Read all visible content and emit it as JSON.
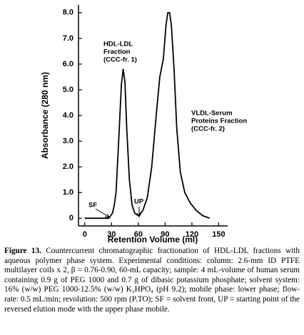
{
  "chart_data": {
    "type": "line",
    "xlabel": "Retention Volume (ml)",
    "ylabel": "Absorbance (280 nm)",
    "x": [
      0,
      20,
      27,
      29,
      31,
      33,
      35,
      38,
      41,
      43,
      45,
      47,
      50,
      53,
      56,
      60,
      65,
      70,
      75,
      80,
      84,
      88,
      91,
      93,
      95,
      97,
      100,
      103,
      107,
      112,
      118,
      125,
      132,
      140
    ],
    "values": [
      0,
      0,
      0,
      0.1,
      0.2,
      0.5,
      1.0,
      3.0,
      5.2,
      5.8,
      5.3,
      3.5,
      1.5,
      0.5,
      0.2,
      0.1,
      0.3,
      0.8,
      2.0,
      4.0,
      5.5,
      6.2,
      7.5,
      8.0,
      8.0,
      7.5,
      5.8,
      3.5,
      1.8,
      1.0,
      0.6,
      0.3,
      0.1,
      0
    ],
    "color": "#000000",
    "xlim": [
      -7,
      160
    ],
    "xticks": [
      0,
      30,
      60,
      90,
      120,
      150
    ],
    "ylim": [
      -0.3,
      8.3
    ],
    "yticks": [
      0,
      {
        "value": 1,
        "label": "1.0"
      },
      {
        "value": 2,
        "label": "2.0"
      },
      {
        "value": 3,
        "label": "3.0"
      },
      {
        "value": 4,
        "label": "4.0"
      },
      {
        "value": 5,
        "label": "5.0"
      },
      {
        "value": 6,
        "label": "6.0"
      },
      {
        "value": 7,
        "label": "7.0"
      },
      {
        "value": 8,
        "label": "8.0"
      }
    ],
    "annotations": [
      "HDL-LDL",
      "Fraction",
      "(CCC-fr. 1)",
      "VLDL-Serum",
      "Proteins Fraction",
      "(CCC-fr. 2)",
      "SF",
      "UP"
    ]
  },
  "caption": {
    "label": "Figure 13.",
    "text": "Countercurrent chromatographic fractionation of HDL-LDL fractions with aqueous polymer phase system. Experimental conditions: column: 2.6-mm ID PTFE multilayer coils x 2, β = 0.76-0.90, 60-mL capacity; sample: 4 mL-volume of human serum containing 0.9 g of PEG 1000 and 0.7 g of dibasic potassium phosphate; solvent system: 16% (w/w) PEG 1000-12.5% (w/w) K₂HPO₄ (pH 9.2); mobile phase: lower phase; flow-rate: 0.5 mL/min; revolution: 500 rpm (PᵢTO); SF = solvent front, UP = starting point of the reversed elution mode with the upper phase mobile."
  }
}
